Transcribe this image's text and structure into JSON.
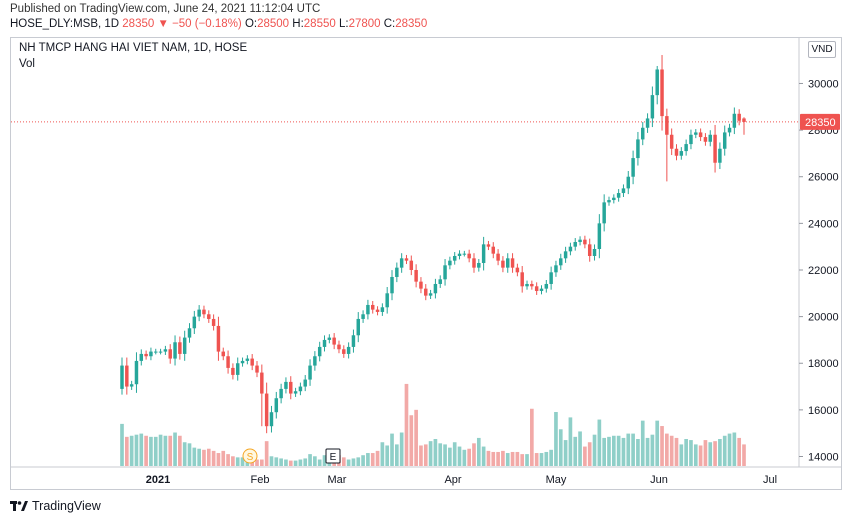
{
  "header": {
    "published": "Published on TradingView.com, June 24, 2021 11:12:04 UTC",
    "symbol_line": "HOSE_DLY:MSB, 1D",
    "last": "28350",
    "change": "−50 (−0.18%)",
    "o_label": "O:",
    "o_value": "28500",
    "h_label": "H:",
    "h_value": "28550",
    "l_label": "L:",
    "l_value": "27800",
    "c_label": "C:",
    "c_value": "28350",
    "down_arrow_icon": "triangle-down-icon"
  },
  "pane": {
    "title": "NH TMCP HANG HAI VIET NAM, 1D, HOSE",
    "vol_label": "Vol",
    "currency": "VND",
    "session_marker_s": "S",
    "session_marker_e": "E"
  },
  "footer": {
    "brand": "TradingView",
    "logo_icon": "tradingview-logo-icon"
  },
  "colors": {
    "up": "#26a69a",
    "down": "#ef5350",
    "up_vol": "#8fcfc8",
    "down_vol": "#f2a9a7",
    "last_line": "#ef5350"
  },
  "chart_data": {
    "type": "candlestick",
    "y_axis": {
      "ticks": [
        14000,
        16000,
        18000,
        20000,
        22000,
        24000,
        26000,
        28000,
        30000
      ],
      "range": [
        13550,
        31950
      ],
      "position": "right"
    },
    "x_axis": {
      "labels": [
        "2021",
        "Feb",
        "Mar",
        "Apr",
        "May",
        "Jun",
        "Jul"
      ],
      "bold": [
        "2021"
      ]
    },
    "last_price": 28350,
    "last_price_label": "28350",
    "grid": false,
    "candles_close": [
      17900,
      17000,
      17100,
      18100,
      18400,
      18300,
      18500,
      18500,
      18500,
      18600,
      18200,
      18900,
      18400,
      19100,
      19500,
      20000,
      20300,
      20100,
      19900,
      19600,
      18500,
      18300,
      17800,
      17500,
      18000,
      18100,
      18200,
      17900,
      17600,
      16700,
      15300,
      15900,
      16500,
      16900,
      17200,
      16700,
      16800,
      17000,
      17300,
      17900,
      18300,
      18700,
      19000,
      19100,
      18800,
      18600,
      18400,
      18700,
      19200,
      19900,
      20100,
      20500,
      20300,
      20200,
      20400,
      21000,
      21700,
      22100,
      22500,
      22400,
      22000,
      21500,
      21200,
      20900,
      21000,
      21400,
      21600,
      22200,
      22400,
      22600,
      22700,
      22700,
      22500,
      22100,
      22300,
      23100,
      23000,
      22700,
      22400,
      22100,
      22500,
      22100,
      21900,
      21300,
      21400,
      21300,
      21100,
      21200,
      21400,
      21900,
      22200,
      22500,
      22800,
      23000,
      23200,
      23300,
      23100,
      22600,
      22900,
      24000,
      24900,
      25000,
      25100,
      25300,
      25500,
      26000,
      26800,
      27600,
      28100,
      28500,
      29500,
      30600,
      28600,
      27800,
      27200,
      26900,
      27100,
      27400,
      27800,
      27900,
      27700,
      27500,
      27800,
      26600,
      27200,
      27900,
      28100,
      28700,
      28400,
      28350
    ],
    "volume_relative": [
      0.39,
      0.27,
      0.28,
      0.29,
      0.3,
      0.28,
      0.27,
      0.27,
      0.29,
      0.28,
      0.28,
      0.31,
      0.28,
      0.22,
      0.21,
      0.17,
      0.16,
      0.15,
      0.16,
      0.14,
      0.12,
      0.14,
      0.11,
      0.09,
      0.08,
      0.08,
      0.07,
      0.06,
      0.06,
      0.06,
      0.23,
      0.09,
      0.08,
      0.07,
      0.06,
      0.05,
      0.05,
      0.06,
      0.07,
      0.11,
      0.09,
      0.06,
      0.1,
      0.1,
      0.1,
      0.1,
      0.08,
      0.06,
      0.07,
      0.08,
      0.1,
      0.12,
      0.12,
      0.14,
      0.22,
      0.19,
      0.3,
      0.2,
      0.31,
      0.76,
      0.47,
      0.52,
      0.19,
      0.2,
      0.23,
      0.25,
      0.21,
      0.2,
      0.17,
      0.22,
      0.18,
      0.15,
      0.16,
      0.21,
      0.26,
      0.18,
      0.14,
      0.13,
      0.13,
      0.14,
      0.12,
      0.13,
      0.13,
      0.11,
      0.11,
      0.53,
      0.12,
      0.12,
      0.13,
      0.15,
      0.5,
      0.34,
      0.24,
      0.45,
      0.27,
      0.32,
      0.18,
      0.22,
      0.29,
      0.43,
      0.26,
      0.27,
      0.28,
      0.28,
      0.26,
      0.3,
      0.3,
      0.25,
      0.42,
      0.26,
      0.29,
      0.42,
      0.37,
      0.3,
      0.28,
      0.26,
      0.2,
      0.25,
      0.24,
      0.2,
      0.19,
      0.24,
      0.22,
      0.23,
      0.25,
      0.28,
      0.3,
      0.31,
      0.26,
      0.2
    ],
    "volume_max_approx_shown_units": "relative"
  }
}
